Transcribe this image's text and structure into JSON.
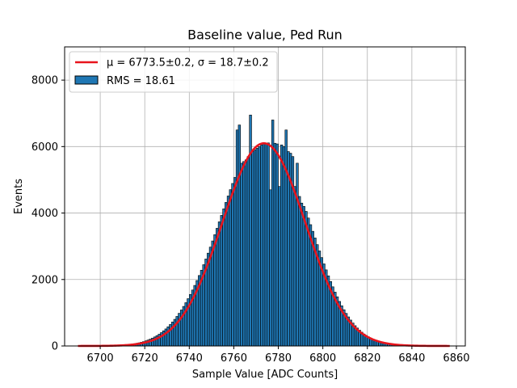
{
  "chart_data": {
    "type": "bar",
    "title": "Baseline value, Ped Run",
    "xlabel": "Sample Value [ADC Counts]",
    "ylabel": "Events",
    "xlim": [
      6684,
      6864
    ],
    "ylim": [
      0,
      9000
    ],
    "xticks": [
      6700,
      6720,
      6740,
      6760,
      6780,
      6800,
      6820,
      6840,
      6860
    ],
    "yticks": [
      0,
      2000,
      4000,
      6000,
      8000
    ],
    "grid": true,
    "legend_position": "top-left",
    "bin_width": 1,
    "histogram": {
      "name": "RMS = 18.61",
      "color": "#1f77b4",
      "edgecolor": "#000000",
      "x_start": 6700,
      "values": [
        2,
        3,
        4,
        5,
        7,
        10,
        12,
        15,
        18,
        22,
        27,
        33,
        40,
        48,
        57,
        68,
        81,
        95,
        112,
        131,
        153,
        178,
        206,
        237,
        272,
        311,
        354,
        402,
        455,
        513,
        577,
        646,
        721,
        802,
        889,
        983,
        1083,
        1190,
        1303,
        1423,
        1550,
        1683,
        1823,
        1969,
        2121,
        2280,
        2446,
        2617,
        2793,
        2975,
        3160,
        3350,
        3541,
        3735,
        3930,
        4126,
        4320,
        4513,
        4704,
        4891,
        5072,
        6500,
        6650,
        5500,
        5550,
        5600,
        5700,
        6950,
        5850,
        5900,
        5950,
        6000,
        6050,
        6080,
        6100,
        6110,
        4700,
        6800,
        6100,
        6080,
        4800,
        6050,
        6000,
        6500,
        5850,
        5800,
        5700,
        4800,
        5500,
        4500,
        4300,
        4200,
        4050,
        3850,
        3650,
        3450,
        3250,
        3050,
        2860,
        2660,
        2470,
        2290,
        2110,
        1940,
        1780,
        1620,
        1480,
        1340,
        1210,
        1090,
        980,
        875,
        780,
        690,
        610,
        540,
        475,
        415,
        360,
        315,
        275,
        238,
        205,
        176,
        150,
        128,
        109,
        92,
        78,
        65,
        55,
        46,
        38,
        32,
        26,
        21,
        17,
        14,
        11,
        9,
        7,
        5,
        4,
        3
      ]
    },
    "fit": {
      "name": "μ = 6773.5±0.2, σ = 18.7±0.2",
      "color": "#e8141c",
      "mu": 6773.5,
      "sigma": 18.7,
      "amplitude": 6100,
      "x_range": [
        6690,
        6857
      ]
    }
  }
}
